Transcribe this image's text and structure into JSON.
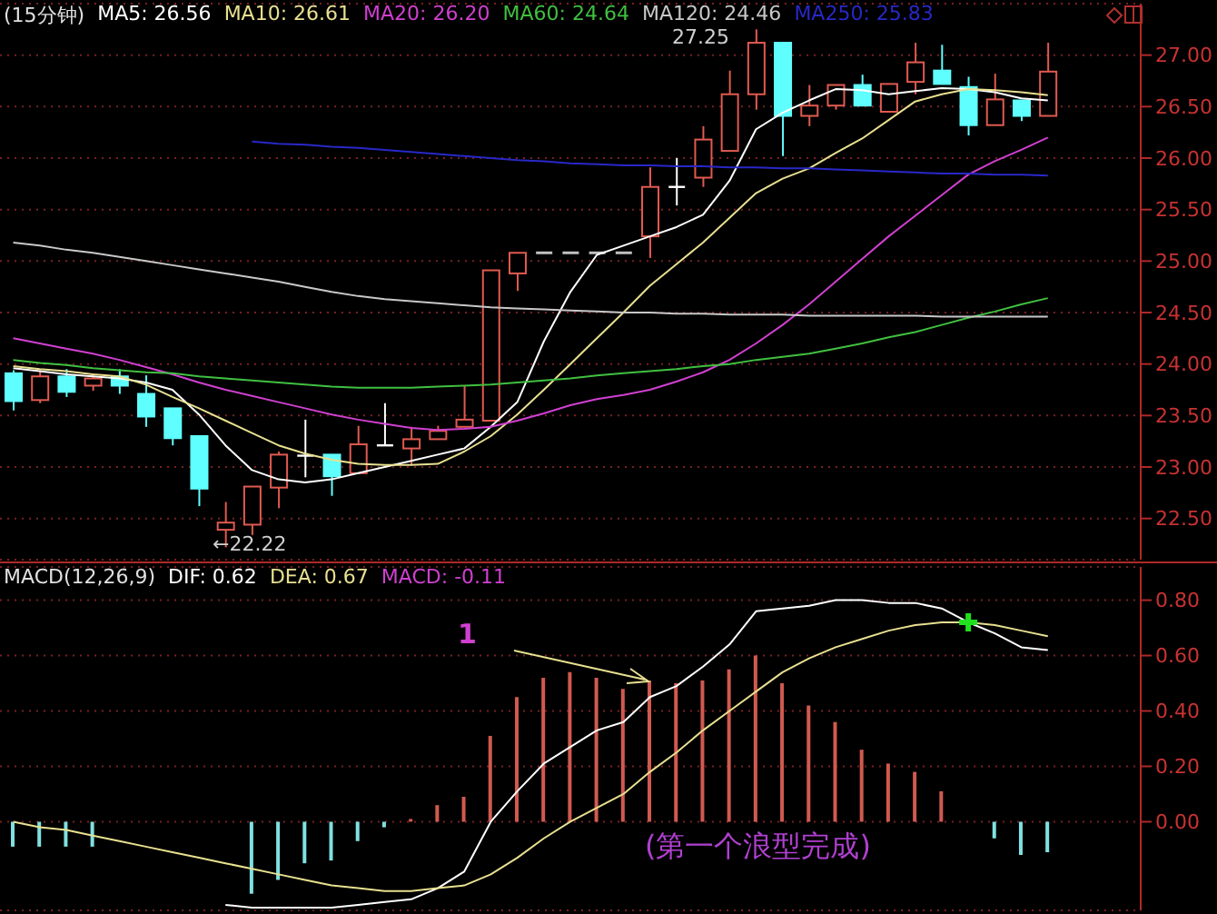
{
  "chart_data": [
    {
      "type": "candlestick",
      "title": "(15分钟)",
      "legend": "top left",
      "grid": "y",
      "categories": [
        null,
        null,
        null,
        null,
        null,
        null,
        null,
        null,
        null,
        null,
        null,
        null,
        null,
        null,
        null,
        null,
        null,
        null,
        null,
        null,
        null,
        null,
        null,
        null,
        null,
        null,
        null,
        null,
        null,
        null,
        null,
        null,
        null,
        null,
        null,
        null,
        null,
        null,
        null,
        null
      ],
      "ohlc": [
        [
          23.91,
          23.94,
          23.55,
          23.64
        ],
        [
          23.65,
          23.94,
          23.62,
          23.88
        ],
        [
          23.88,
          23.95,
          23.68,
          23.73
        ],
        [
          23.79,
          23.91,
          23.74,
          23.86
        ],
        [
          23.88,
          23.95,
          23.71,
          23.79
        ],
        [
          23.71,
          23.89,
          23.39,
          23.49
        ],
        [
          23.57,
          23.57,
          23.21,
          23.28
        ],
        [
          23.3,
          23.3,
          22.62,
          22.79
        ],
        [
          22.39,
          22.66,
          22.22,
          22.46
        ],
        [
          22.44,
          22.81,
          22.34,
          22.81
        ],
        [
          22.8,
          23.15,
          22.6,
          23.12
        ],
        [
          23.11,
          23.46,
          22.9,
          23.11
        ],
        [
          23.12,
          23.12,
          22.72,
          22.91
        ],
        [
          22.94,
          23.4,
          22.94,
          23.22
        ],
        [
          23.21,
          23.62,
          23.21,
          23.21
        ],
        [
          23.18,
          23.39,
          23.02,
          23.27
        ],
        [
          23.27,
          23.4,
          23.27,
          23.35
        ],
        [
          23.39,
          23.79,
          23.39,
          23.46
        ],
        [
          23.45,
          24.91,
          23.45,
          24.91
        ],
        [
          24.88,
          25.08,
          24.71,
          25.08
        ],
        [
          25.08,
          25.08,
          25.08,
          25.08
        ],
        [
          25.08,
          25.08,
          25.08,
          25.08
        ],
        [
          25.08,
          25.08,
          25.08,
          25.08
        ],
        [
          25.08,
          25.08,
          25.08,
          25.08
        ],
        [
          25.24,
          25.91,
          25.03,
          25.72
        ],
        [
          25.72,
          26.0,
          25.54,
          25.72
        ],
        [
          25.81,
          26.31,
          25.72,
          26.18
        ],
        [
          26.07,
          26.85,
          26.07,
          26.62
        ],
        [
          26.62,
          27.25,
          26.47,
          27.12
        ],
        [
          27.12,
          27.12,
          26.02,
          26.41
        ],
        [
          26.41,
          26.71,
          26.31,
          26.51
        ],
        [
          26.51,
          26.71,
          26.47,
          26.71
        ],
        [
          26.71,
          26.81,
          26.51,
          26.51
        ],
        [
          26.45,
          26.72,
          26.45,
          26.72
        ],
        [
          26.74,
          27.12,
          26.62,
          26.93
        ],
        [
          26.85,
          27.1,
          26.72,
          26.72
        ],
        [
          26.69,
          26.79,
          26.22,
          26.32
        ],
        [
          26.32,
          26.82,
          26.32,
          26.57
        ],
        [
          26.56,
          26.56,
          26.36,
          26.41
        ],
        [
          26.41,
          27.12,
          26.41,
          26.84
        ]
      ],
      "colors": [
        "#60ffff",
        "#e05a50",
        "#60ffff",
        "#e05a50",
        "#60ffff",
        "#60ffff",
        "#60ffff",
        "#60ffff",
        "#e05a50",
        "#e05a50",
        "#e05a50",
        "#ffffff",
        "#60ffff",
        "#e05a50",
        "#ffffff",
        "#e05a50",
        "#e05a50",
        "#e05a50",
        "#e05a50",
        "#e05a50",
        "#c0c0c0",
        "#c0c0c0",
        "#c0c0c0",
        "#c0c0c0",
        "#e05a50",
        "#ffffff",
        "#e05a50",
        "#e05a50",
        "#e05a50",
        "#60ffff",
        "#e05a50",
        "#e05a50",
        "#60ffff",
        "#e05a50",
        "#e05a50",
        "#60ffff",
        "#60ffff",
        "#e05a50",
        "#60ffff",
        "#e05a50"
      ],
      "series": [
        {
          "type": "line",
          "name": "MA5: 26.56",
          "color": "#ffffff",
          "values": [
            23.96,
            23.93,
            23.9,
            23.88,
            23.86,
            23.82,
            23.75,
            23.51,
            23.21,
            22.97,
            22.88,
            22.85,
            22.88,
            22.94,
            23.0,
            23.06,
            23.12,
            23.18,
            23.39,
            23.63,
            24.22,
            24.7,
            25.06,
            25.15,
            25.24,
            25.33,
            25.45,
            25.78,
            26.28,
            26.44,
            26.56,
            26.67,
            26.66,
            26.62,
            26.65,
            26.68,
            26.67,
            26.64,
            26.58,
            26.56
          ]
        },
        {
          "type": "line",
          "name": "MA10: 26.61",
          "color": "#e8e090",
          "values": [
            23.98,
            23.95,
            23.93,
            23.9,
            23.88,
            23.8,
            23.68,
            23.57,
            23.45,
            23.33,
            23.21,
            23.13,
            23.07,
            23.03,
            23.02,
            23.02,
            23.03,
            23.15,
            23.3,
            23.51,
            23.75,
            24.0,
            24.25,
            24.5,
            24.76,
            24.97,
            25.18,
            25.42,
            25.66,
            25.8,
            25.9,
            26.05,
            26.19,
            26.37,
            26.55,
            26.62,
            26.67,
            26.66,
            26.64,
            26.61
          ]
        },
        {
          "type": "line",
          "name": "MA20: 26.20",
          "color": "#d040d0",
          "values": [
            24.25,
            24.2,
            24.15,
            24.1,
            24.04,
            23.97,
            23.9,
            23.82,
            23.75,
            23.69,
            23.63,
            23.57,
            23.51,
            23.46,
            23.42,
            23.38,
            23.36,
            23.37,
            23.39,
            23.45,
            23.52,
            23.6,
            23.66,
            23.7,
            23.75,
            23.83,
            23.92,
            24.04,
            24.2,
            24.38,
            24.58,
            24.8,
            25.02,
            25.24,
            25.44,
            25.64,
            25.84,
            25.97,
            26.08,
            26.2
          ]
        },
        {
          "type": "line",
          "name": "MA60: 24.64",
          "color": "#40c040",
          "values": [
            24.04,
            24.01,
            23.99,
            23.96,
            23.94,
            23.92,
            23.91,
            23.88,
            23.86,
            23.84,
            23.82,
            23.8,
            23.78,
            23.77,
            23.77,
            23.77,
            23.78,
            23.79,
            23.8,
            23.82,
            23.84,
            23.86,
            23.89,
            23.91,
            23.93,
            23.95,
            23.98,
            24.0,
            24.04,
            24.07,
            24.1,
            24.15,
            24.2,
            24.26,
            24.31,
            24.38,
            24.45,
            24.51,
            24.58,
            24.64
          ]
        },
        {
          "type": "line",
          "name": "MA120: 24.46",
          "color": "#c8c8c8",
          "values": [
            25.18,
            25.15,
            25.11,
            25.08,
            25.04,
            25.0,
            24.96,
            24.92,
            24.88,
            24.84,
            24.8,
            24.75,
            24.7,
            24.66,
            24.63,
            24.61,
            24.59,
            24.57,
            24.55,
            24.54,
            24.53,
            24.52,
            24.51,
            24.5,
            24.5,
            24.49,
            24.49,
            24.48,
            24.48,
            24.48,
            24.47,
            24.47,
            24.47,
            24.47,
            24.47,
            24.46,
            24.46,
            24.46,
            24.46,
            24.46
          ]
        },
        {
          "type": "line",
          "name": "MA250: 25.83",
          "color": "#2828c8",
          "values": [
            null,
            null,
            null,
            null,
            null,
            null,
            null,
            null,
            null,
            26.16,
            26.14,
            26.13,
            26.11,
            26.1,
            26.08,
            26.06,
            26.04,
            26.02,
            26.0,
            25.98,
            25.97,
            25.95,
            25.94,
            25.93,
            25.93,
            25.92,
            25.92,
            25.91,
            25.91,
            25.9,
            25.9,
            25.89,
            25.88,
            25.87,
            25.86,
            25.85,
            25.85,
            25.84,
            25.84,
            25.83
          ]
        }
      ],
      "ylim": [
        22.1,
        27.5
      ],
      "yticks": [
        {
          "value": 22.5,
          "label": "22.50"
        },
        {
          "value": 23,
          "label": "23.00"
        },
        {
          "value": 23.5,
          "label": "23.50"
        },
        {
          "value": 24,
          "label": "24.00"
        },
        {
          "value": 24.5,
          "label": "24.50"
        },
        {
          "value": 25,
          "label": "25.00"
        },
        {
          "value": 25.5,
          "label": "25.50"
        },
        {
          "value": 26,
          "label": "26.00"
        },
        {
          "value": 26.5,
          "label": "26.50"
        },
        {
          "value": 27,
          "label": "27.00"
        }
      ],
      "annotations": [
        "←22.22",
        "27.25"
      ]
    },
    {
      "type": "bar",
      "title": "MACD(12,26,9)",
      "legend": "top left",
      "grid": "y",
      "categories": [
        null,
        null,
        null,
        null,
        null,
        null,
        null,
        null,
        null,
        null,
        null,
        null,
        null,
        null,
        null,
        null,
        null,
        null,
        null,
        null,
        null,
        null,
        null,
        null,
        null,
        null,
        null,
        null,
        null,
        null,
        null,
        null,
        null,
        null,
        null,
        null,
        null,
        null,
        null,
        null
      ],
      "series": [
        {
          "type": "line",
          "name": "DIF: 0.62",
          "color": "#ffffff",
          "values": [
            null,
            null,
            null,
            null,
            null,
            null,
            null,
            null,
            -0.3,
            -0.31,
            -0.31,
            -0.31,
            -0.31,
            -0.3,
            -0.29,
            -0.28,
            -0.24,
            -0.18,
            0.0,
            0.11,
            0.21,
            0.27,
            0.33,
            0.36,
            0.45,
            0.49,
            0.56,
            0.64,
            0.76,
            0.77,
            0.78,
            0.8,
            0.8,
            0.79,
            0.79,
            0.77,
            0.72,
            0.68,
            0.63,
            0.62
          ]
        },
        {
          "type": "line",
          "name": "DEA: 0.67",
          "color": "#e8e090",
          "values": [
            0.0,
            -0.02,
            -0.03,
            -0.05,
            -0.07,
            -0.09,
            -0.11,
            -0.13,
            -0.15,
            -0.17,
            -0.19,
            -0.21,
            -0.23,
            -0.24,
            -0.25,
            -0.25,
            -0.24,
            -0.23,
            -0.19,
            -0.13,
            -0.06,
            0.0,
            0.05,
            0.1,
            0.18,
            0.25,
            0.33,
            0.4,
            0.47,
            0.54,
            0.59,
            0.63,
            0.66,
            0.69,
            0.71,
            0.72,
            0.72,
            0.71,
            0.69,
            0.67
          ]
        },
        {
          "type": "bar",
          "values": [
            -0.09,
            -0.09,
            -0.09,
            -0.09,
            null,
            null,
            null,
            null,
            null,
            -0.26,
            -0.21,
            -0.15,
            -0.14,
            -0.07,
            -0.02,
            0.01,
            0.06,
            0.09,
            0.31,
            0.45,
            0.52,
            0.54,
            0.52,
            0.48,
            0.51,
            0.5,
            0.51,
            0.55,
            0.6,
            0.5,
            0.42,
            0.36,
            0.26,
            0.21,
            0.18,
            0.11,
            0,
            -0.06,
            -0.12,
            -0.11
          ],
          "colors": [
            "#80e0e0",
            "#80e0e0",
            "#80e0e0",
            "#80e0e0",
            "#80e0e0",
            "#80e0e0",
            "#80e0e0",
            "#80e0e0",
            "#80e0e0",
            "#80e0e0",
            "#80e0e0",
            "#80e0e0",
            "#80e0e0",
            "#80e0e0",
            "#80e0e0",
            "#d05a50",
            "#d05a50",
            "#d05a50",
            "#d05a50",
            "#d05a50",
            "#d05a50",
            "#d05a50",
            "#d05a50",
            "#d05a50",
            "#d05a50",
            "#d05a50",
            "#d05a50",
            "#d05a50",
            "#d05a50",
            "#d05a50",
            "#d05a50",
            "#d05a50",
            "#d05a50",
            "#d05a50",
            "#d05a50",
            "#d05a50",
            "#d05a50",
            "#80e0e0",
            "#80e0e0",
            "#80e0e0"
          ]
        },
        {
          "type": "scatter",
          "color": "#20e020",
          "marker": "cross",
          "values": [
            null,
            null,
            null,
            null,
            null,
            null,
            null,
            null,
            null,
            null,
            null,
            null,
            null,
            null,
            null,
            null,
            null,
            null,
            null,
            null,
            null,
            null,
            null,
            null,
            null,
            null,
            null,
            null,
            null,
            null,
            null,
            null,
            null,
            null,
            null,
            null,
            0.72,
            null,
            null,
            null
          ]
        }
      ],
      "ylim": [
        -0.32,
        0.92
      ],
      "yticks": [
        {
          "value": 0,
          "label": "0.00"
        },
        {
          "value": 0.2,
          "label": "0.20"
        },
        {
          "value": 0.4,
          "label": "0.40"
        },
        {
          "value": 0.6,
          "label": "0.60"
        },
        {
          "value": 0.8,
          "label": "0.80"
        }
      ],
      "annotations": [
        "MACD: -0.11",
        "1",
        "(第一个浪型完成)"
      ]
    }
  ]
}
